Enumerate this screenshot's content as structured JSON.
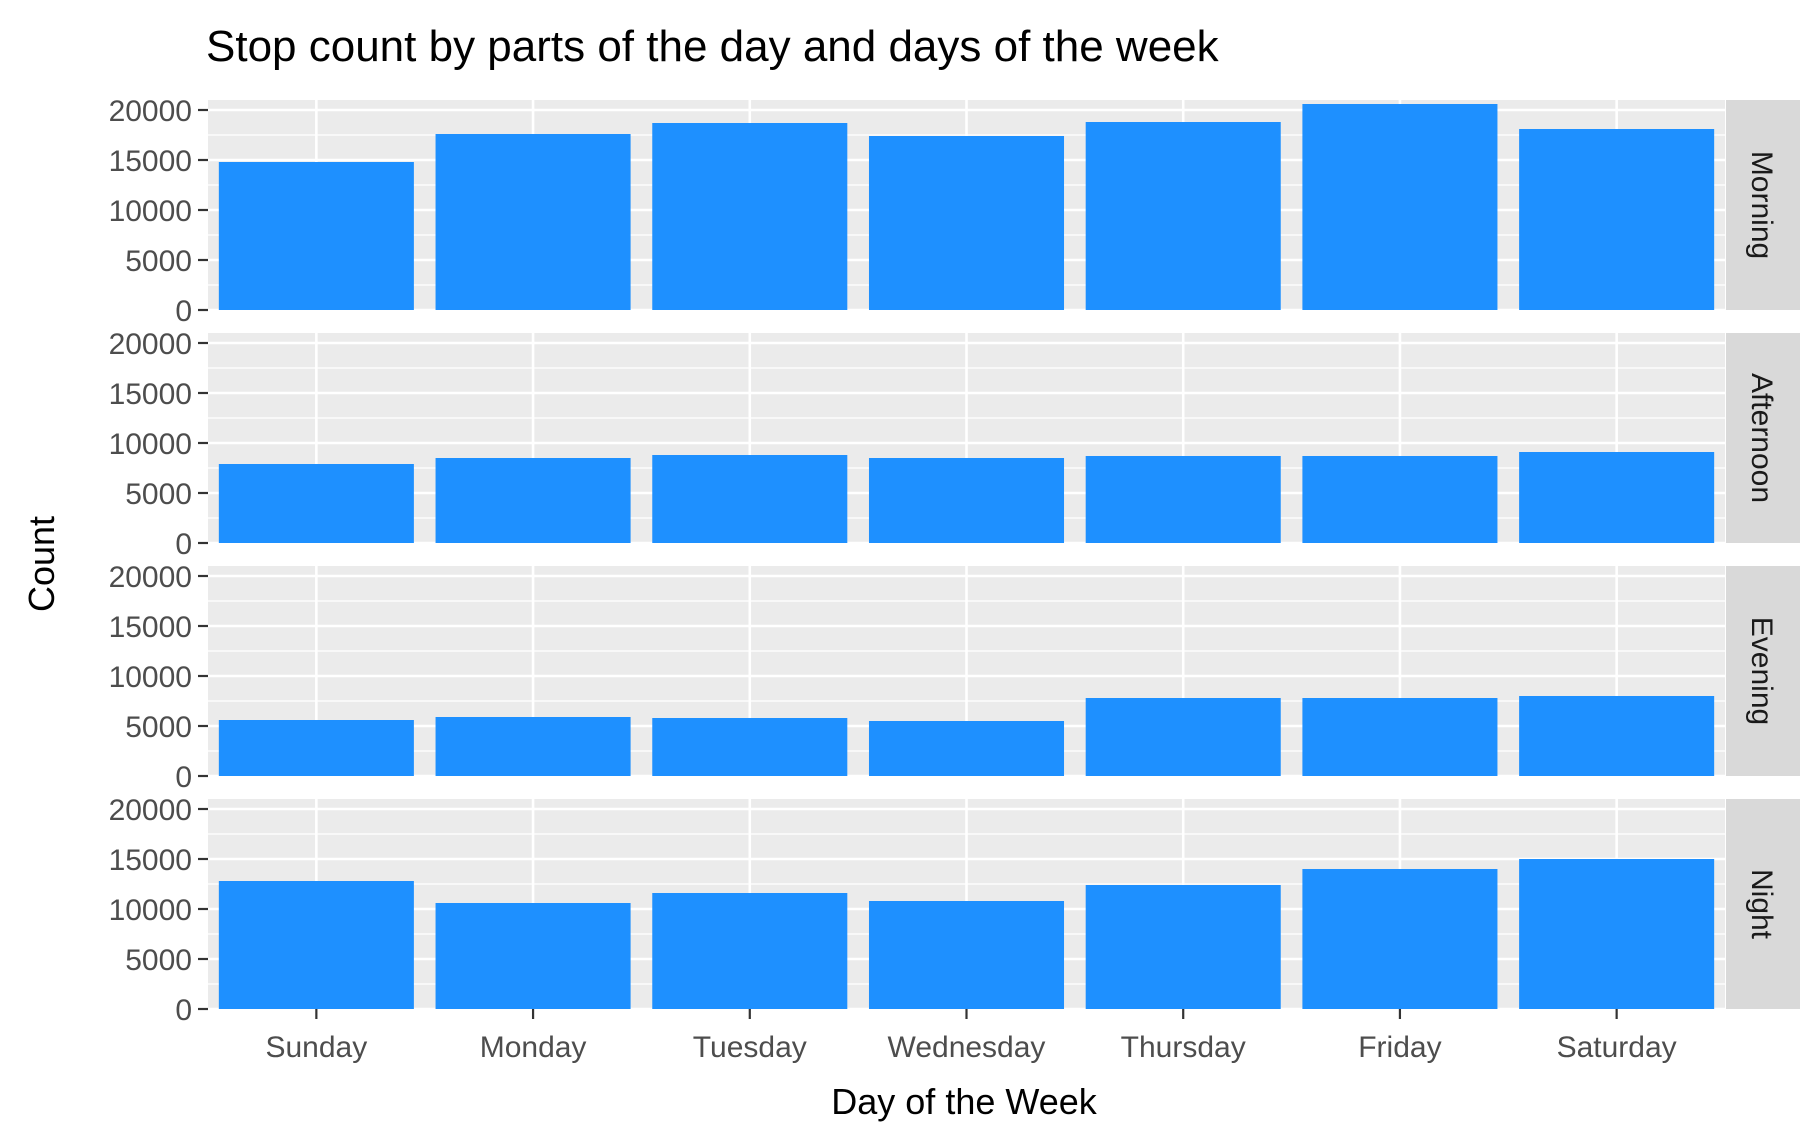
{
  "chart_data": {
    "type": "bar",
    "title": "Stop count by parts of the day and days of the week",
    "xlabel": "Day of the Week",
    "ylabel": "Count",
    "categories": [
      "Sunday",
      "Monday",
      "Tuesday",
      "Wednesday",
      "Thursday",
      "Friday",
      "Saturday"
    ],
    "yticks": [
      "0",
      "5000",
      "10000",
      "15000",
      "20000"
    ],
    "ylim": [
      0,
      21000
    ],
    "grid": true,
    "bar_color": "#1E90FF",
    "facets": [
      {
        "label": "Morning",
        "values": [
          14800,
          17600,
          18700,
          17400,
          18800,
          20600,
          18100
        ]
      },
      {
        "label": "Afternoon",
        "values": [
          7900,
          8500,
          8800,
          8500,
          8700,
          8700,
          9100
        ]
      },
      {
        "label": "Evening",
        "values": [
          5600,
          5900,
          5800,
          5500,
          7800,
          7800,
          8000
        ]
      },
      {
        "label": "Night",
        "values": [
          12800,
          10600,
          11600,
          10800,
          12400,
          14000,
          15000
        ]
      }
    ]
  }
}
